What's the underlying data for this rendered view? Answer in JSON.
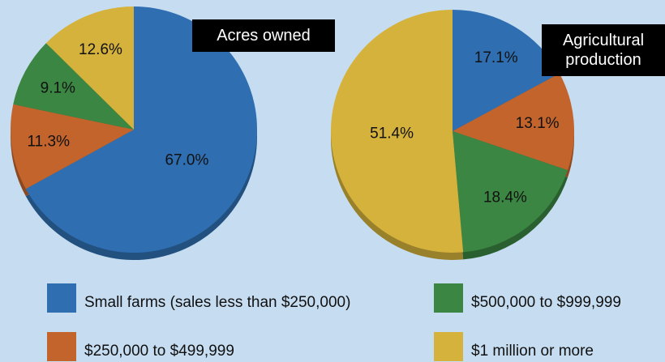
{
  "legend": {
    "categories": [
      "Small farms (sales less than $250,000)",
      "$250,000 to $499,999",
      "$500,000 to $999,999",
      "$1 million or more"
    ],
    "colors": [
      "#2f6fb1",
      "#c2642c",
      "#3b8643",
      "#d5b23c"
    ]
  },
  "chart_data": [
    {
      "type": "pie",
      "title": "Acres owned",
      "values": [
        67.0,
        11.3,
        9.1,
        12.6
      ],
      "value_labels": [
        "67.0%",
        "11.3%",
        "9.1%",
        "12.6%"
      ]
    },
    {
      "type": "pie",
      "title": "Agricultural production",
      "values": [
        17.1,
        13.1,
        18.4,
        51.4
      ],
      "value_labels": [
        "17.1%",
        "13.1%",
        "18.4%",
        "51.4%"
      ]
    }
  ]
}
